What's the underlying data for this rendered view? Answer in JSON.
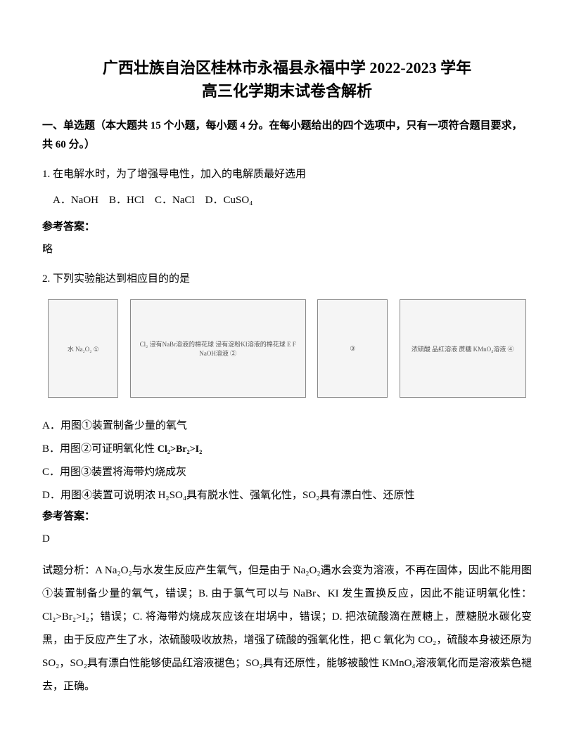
{
  "title_line1": "广西壮族自治区桂林市永福县永福中学 2022-2023 学年",
  "title_line2": "高三化学期末试卷含解析",
  "section_header": "一、单选题（本大题共 15 个小题，每小题 4 分。在每小题给出的四个选项中，只有一项符合题目要求，共 60 分。）",
  "q1": {
    "text": "1. 在电解水时，为了增强导电性，加入的电解质最好选用",
    "options": "A．NaOH　B．HCl　C．NaCl　D．CuSO₄",
    "answer_label": "参考答案：",
    "answer": "略"
  },
  "q2": {
    "text": "2. 下列实验能达到相应目的的是",
    "diagram_labels": {
      "d1": "水\nNa₂O₂\n①",
      "d2": "Cl₂ 浸有NaBr溶液的棉花球 浸有淀粉KI溶液的棉花球\nE F\nNaOH溶液\n②",
      "d3": "③",
      "d4": "浓硫酸\n品红溶液 蔗糖 KMnO₄溶液\n④"
    },
    "optA": "A．用图①装置制备少量的氧气",
    "optB_prefix": "B．用图②可证明氧化性 ",
    "optB_formula": "Cl₂>Br₂>I₂",
    "optC": "C．用图③装置将海带灼烧成灰",
    "optD": "D．用图④装置可说明浓 H₂SO₄具有脱水性、强氧化性，SO₂具有漂白性、还原性",
    "answer_label": "参考答案：",
    "answer": "D",
    "analysis": "试题分析：A Na₂O₂与水发生反应产生氧气，但是由于 Na₂O₂遇水会变为溶液，不再在固体，因此不能用图①装置制备少量的氧气，错误；B. 由于氯气可以与 NaBr、KI 发生置换反应，因此不能证明氧化性：Cl₂>Br₂>I₂；错误；C. 将海带灼烧成灰应该在坩埚中，错误；D. 把浓硫酸滴在蔗糖上，蔗糖脱水碳化变黑，由于反应产生了水，浓硫酸吸收放热，增强了硫酸的强氧化性，把 C 氧化为 CO₂，硫酸本身被还原为 SO₂，SO₂具有漂白性能够使品红溶液褪色；SO₂具有还原性，能够被酸性 KMnO₄溶液氧化而是溶液紫色褪去，正确。"
  }
}
